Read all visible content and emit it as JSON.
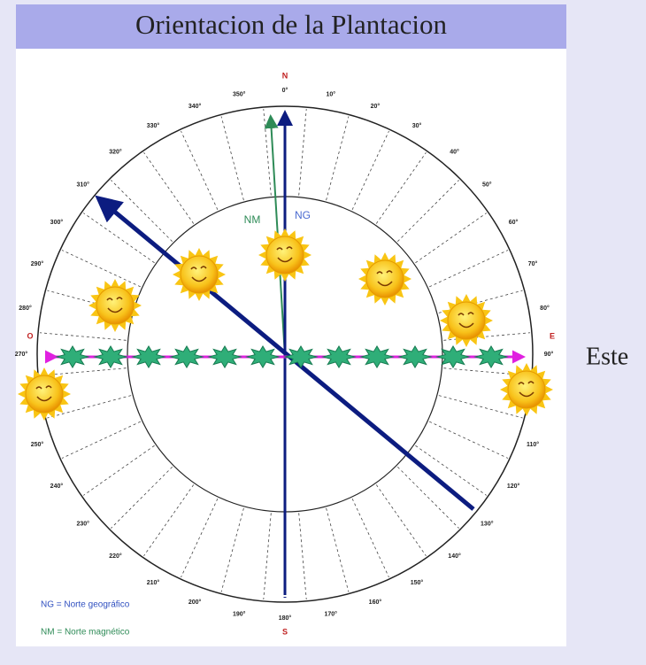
{
  "header": {
    "title": "Orientacion de la Plantacion"
  },
  "compass": {
    "cardinals": {
      "north": "N",
      "east": "E",
      "south": "S",
      "west": "O"
    },
    "degree_labels": [
      "0°",
      "10°",
      "20°",
      "30°",
      "40°",
      "50°",
      "60°",
      "70°",
      "80°",
      "90°",
      "110°",
      "120°",
      "130°",
      "140°",
      "150°",
      "160°",
      "170°",
      "180°",
      "190°",
      "200°",
      "210°",
      "220°",
      "230°",
      "240°",
      "250°",
      "270°",
      "280°",
      "290°",
      "300°",
      "310°",
      "320°",
      "330°",
      "340°",
      "350°"
    ],
    "degree_angles_note_free": null,
    "arrow_labels": {
      "magnetic": "NM",
      "geographic": "NG"
    }
  },
  "legend": [
    "NG = Norte geográfico",
    "NM = Norte magnético"
  ],
  "side_label": "Este"
}
